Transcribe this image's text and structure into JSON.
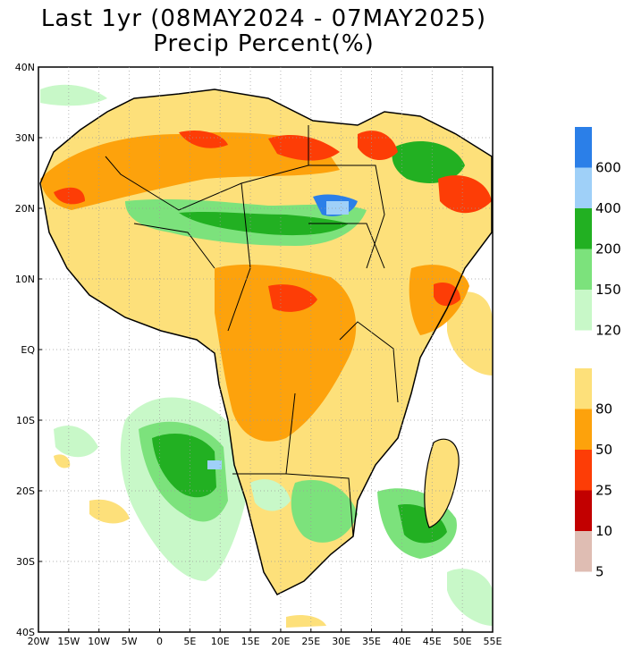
{
  "title": {
    "line1": "Last 1yr (08MAY2024 - 07MAY2025)",
    "line2": "Precip Percent(%)"
  },
  "axes": {
    "lat_labels": [
      "40N",
      "30N",
      "20N",
      "10N",
      "EQ",
      "10S",
      "20S",
      "30S",
      "40S"
    ],
    "lon_labels": [
      "20W",
      "15W",
      "10W",
      "5W",
      "0",
      "5E",
      "10E",
      "15E",
      "20E",
      "25E",
      "30E",
      "35E",
      "40E",
      "45E",
      "50E",
      "55E"
    ]
  },
  "legend": {
    "wet_classes": [
      {
        "label": "600",
        "color": "#2b7fe8"
      },
      {
        "label": "400",
        "color": "#9fd0f8"
      },
      {
        "label": "200",
        "color": "#22b022"
      },
      {
        "label": "150",
        "color": "#7ce27c"
      },
      {
        "label": "120",
        "color": "#c8f8c8"
      }
    ],
    "dry_classes": [
      {
        "label": "80",
        "color": "#fde07a"
      },
      {
        "label": "50",
        "color": "#fda20c"
      },
      {
        "label": "25",
        "color": "#fd3d06"
      },
      {
        "label": "10",
        "color": "#c20000"
      },
      {
        "label": "5",
        "color": "#dfbdb3"
      }
    ]
  }
}
